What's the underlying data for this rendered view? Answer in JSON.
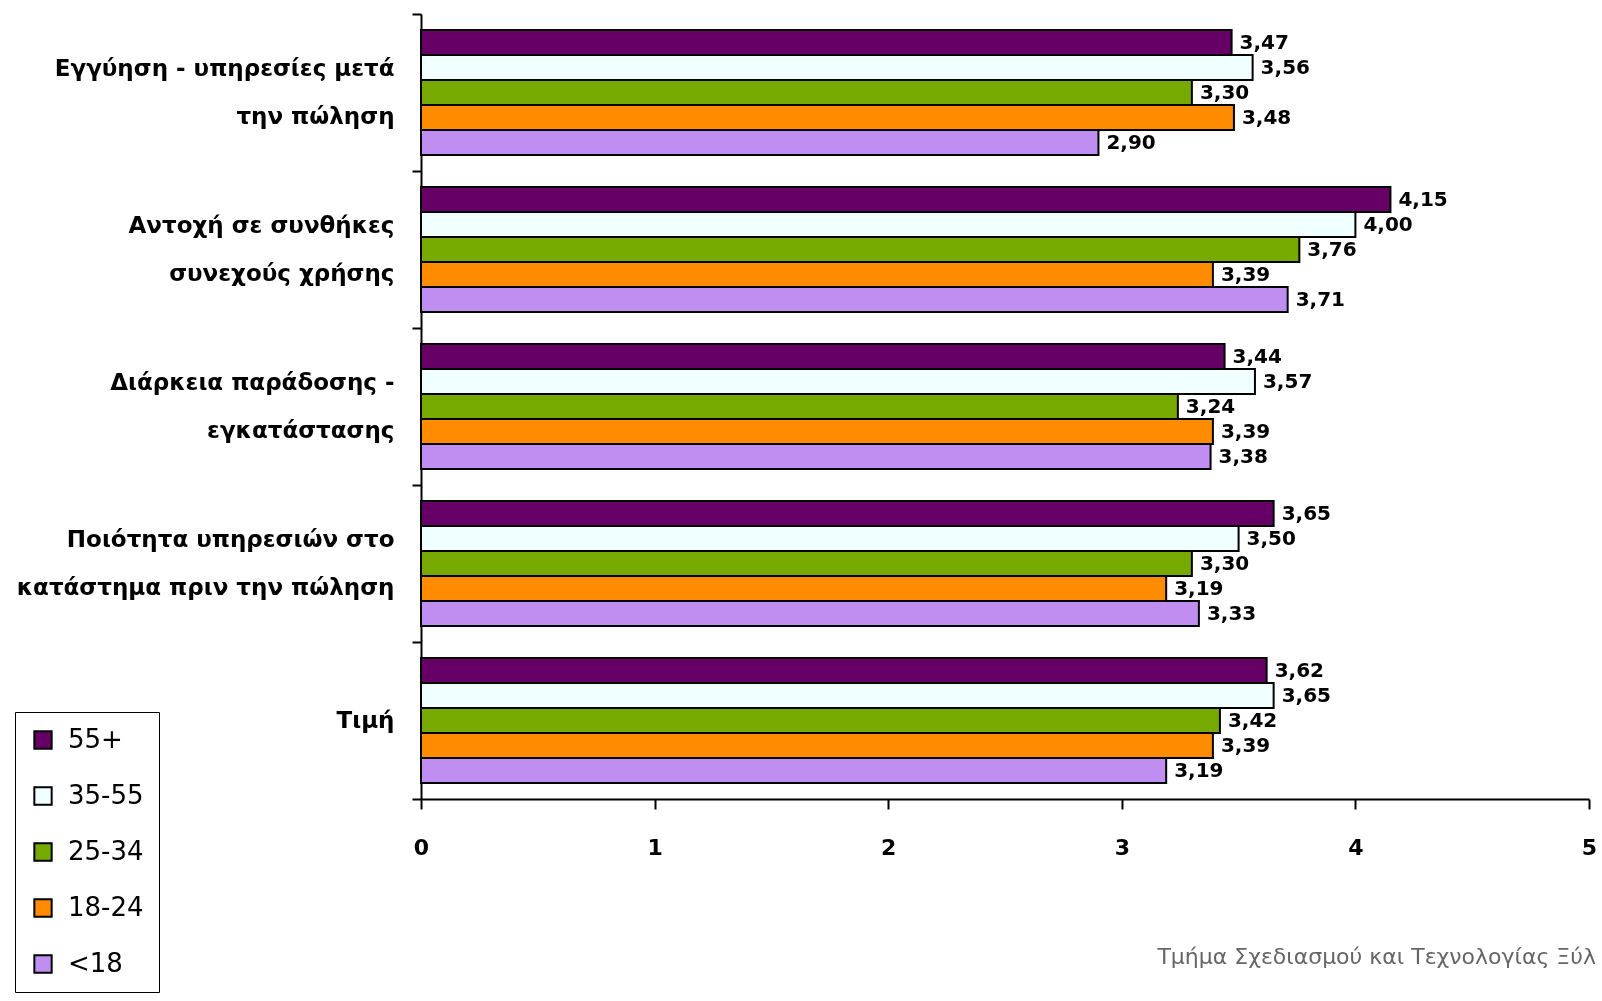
{
  "chart_data": {
    "type": "bar",
    "orientation": "horizontal",
    "categories": [
      "Εγγύηση - υπηρεσίες μετά την πώληση",
      "Αντοχή σε συνθήκες συνεχούς χρήσης",
      "Διάρκεια παράδοσης - εγκατάστασης",
      "Ποιότητα υπηρεσιών στο κατάστημα πριν την πώληση",
      "Τιμή"
    ],
    "series": [
      {
        "name": "55+",
        "color": "#660066",
        "values": [
          3.47,
          4.15,
          3.44,
          3.65,
          3.62
        ],
        "value_labels": [
          "3,47",
          "4,15",
          "3,44",
          "3,65",
          "3,62"
        ]
      },
      {
        "name": "35-55",
        "color": "#f0ffff",
        "values": [
          3.56,
          4.0,
          3.57,
          3.5,
          3.65
        ],
        "value_labels": [
          "3,56",
          "4,00",
          "3,57",
          "3,50",
          "3,65"
        ]
      },
      {
        "name": "25-34",
        "color": "#77aa00",
        "values": [
          3.3,
          3.76,
          3.24,
          3.3,
          3.42
        ],
        "value_labels": [
          "3,30",
          "3,76",
          "3,24",
          "3,30",
          "3,42"
        ]
      },
      {
        "name": "18-24",
        "color": "#ff8c00",
        "values": [
          3.48,
          3.39,
          3.39,
          3.19,
          3.39
        ],
        "value_labels": [
          "3,48",
          "3,39",
          "3,39",
          "3,19",
          "3,39"
        ]
      },
      {
        "name": "<18",
        "color": "#c08ef0",
        "values": [
          2.9,
          3.71,
          3.38,
          3.33,
          3.19
        ],
        "value_labels": [
          "2,90",
          "3,71",
          "3,38",
          "3,33",
          "3,19"
        ]
      }
    ],
    "xlim": [
      0,
      5
    ],
    "xticks": [
      0,
      1,
      2,
      3,
      4,
      5
    ],
    "legend": "bottom left",
    "annotations": [
      "Τμήμα Σχεδιασμού και Τεχνολογίας Ξύλ"
    ]
  }
}
